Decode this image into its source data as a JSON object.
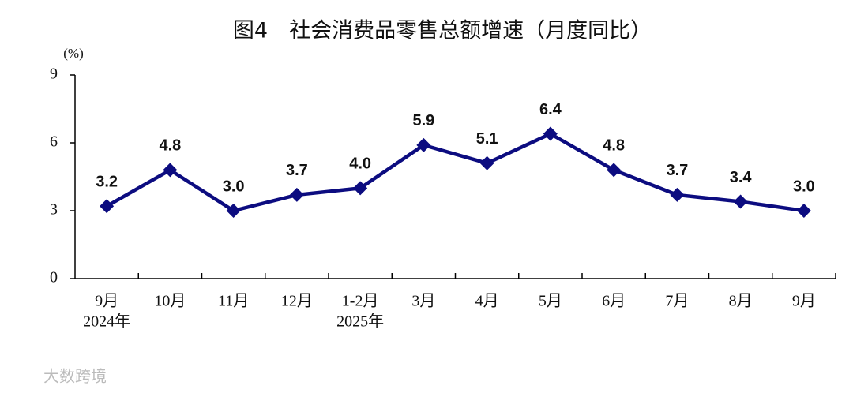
{
  "chart_data": {
    "type": "line",
    "title": "图4　社会消费品零售总额增速（月度同比）",
    "y_unit": "(%)",
    "categories": [
      "9月",
      "10月",
      "11月",
      "12月",
      "1-2月",
      "3月",
      "4月",
      "5月",
      "6月",
      "7月",
      "8月",
      "9月"
    ],
    "category_sublabels": [
      "2024年",
      null,
      null,
      null,
      "2025年",
      null,
      null,
      null,
      null,
      null,
      null,
      null
    ],
    "values": [
      3.2,
      4.8,
      3.0,
      3.7,
      4.0,
      5.9,
      5.1,
      6.4,
      4.8,
      3.7,
      3.4,
      3.0
    ],
    "value_labels": [
      "3.2",
      "4.8",
      "3.0",
      "3.7",
      "4.0",
      "5.9",
      "5.1",
      "6.4",
      "4.8",
      "3.7",
      "3.4",
      "3.0"
    ],
    "color": "#0c0c80",
    "ylim": [
      0,
      9
    ],
    "yticks": [
      0,
      3,
      6,
      9
    ],
    "grid": false,
    "watermark": "大数跨境"
  }
}
